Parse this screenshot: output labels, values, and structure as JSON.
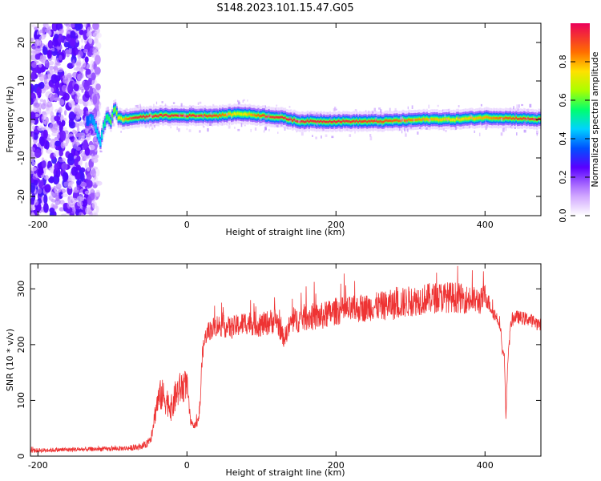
{
  "title": "S148.2023.101.15.47.G05",
  "chart_data": [
    {
      "type": "heatmap",
      "xlabel": "Height of straight line (km)",
      "ylabel": "Frequency (Hz)",
      "xlim": [
        -210,
        475
      ],
      "ylim": [
        -25,
        25
      ],
      "x_ticks": [
        -200,
        0,
        200,
        400
      ],
      "y_ticks": [
        -20,
        -10,
        0,
        10,
        20
      ],
      "colorbar": {
        "label": "Normalized spectral amplitude",
        "range": [
          0,
          1
        ],
        "ticks": [
          "0.0",
          "0.2",
          "0.4",
          "0.6",
          "0.8"
        ],
        "tick_values": [
          0,
          0.2,
          0.4,
          0.6,
          0.8
        ]
      },
      "noise_region": {
        "x": [
          -210,
          -118
        ],
        "amplitude": 0.15
      },
      "ridge": {
        "x": [
          -135,
          -128,
          -122,
          -117,
          -113,
          -108,
          -103,
          -98,
          -93,
          -85,
          -70,
          -40,
          0,
          40,
          70,
          100,
          125,
          150,
          200,
          260,
          320,
          360,
          400,
          440,
          475
        ],
        "frequency": [
          -0.5,
          0.5,
          -3,
          -6,
          -2,
          1,
          -0.5,
          3,
          0.5,
          0,
          0.5,
          1,
          1,
          1,
          1.5,
          1,
          0.5,
          -0.5,
          -0.5,
          -0.5,
          0,
          0,
          0.5,
          0.3,
          0
        ],
        "amplitude": [
          0.35,
          0.4,
          0.45,
          0.45,
          0.5,
          0.55,
          0.6,
          0.6,
          0.7,
          0.8,
          0.95,
          0.95,
          0.95,
          0.9,
          0.7,
          0.9,
          0.95,
          0.95,
          0.95,
          0.9,
          0.8,
          0.75,
          0.8,
          0.9,
          0.95
        ]
      }
    },
    {
      "type": "line",
      "xlabel": "Height of straight line (km)",
      "ylabel": "SNR (10 * v/v)",
      "xlim": [
        -210,
        475
      ],
      "ylim": [
        0,
        345
      ],
      "x_ticks": [
        -200,
        0,
        200,
        400
      ],
      "y_ticks": [
        0,
        100,
        200,
        300
      ],
      "color": "#ee3333",
      "series": [
        {
          "x": [
            -210,
            -150,
            -100,
            -70,
            -55,
            -48,
            -45,
            -40,
            -35,
            -30,
            -25,
            -20,
            -15,
            -10,
            -5,
            0,
            2,
            5,
            8,
            10,
            15,
            18,
            20,
            22,
            25,
            30,
            40,
            60,
            80,
            100,
            120,
            130,
            140,
            160,
            180,
            200,
            220,
            250,
            280,
            300,
            320,
            340,
            360,
            380,
            395,
            400,
            410,
            415,
            420,
            423,
            426,
            428,
            431,
            435,
            440,
            460,
            475
          ],
          "mean": [
            10,
            12,
            13,
            15,
            20,
            35,
            60,
            95,
            110,
            105,
            95,
            85,
            110,
            120,
            125,
            130,
            100,
            60,
            55,
            55,
            60,
            100,
            170,
            195,
            215,
            225,
            235,
            230,
            240,
            235,
            245,
            210,
            240,
            250,
            250,
            260,
            262,
            268,
            272,
            278,
            282,
            285,
            285,
            280,
            278,
            290,
            260,
            250,
            240,
            190,
            180,
            70,
            180,
            240,
            250,
            245,
            235
          ],
          "noise": [
            4,
            4,
            4,
            5,
            6,
            10,
            15,
            25,
            30,
            30,
            25,
            25,
            30,
            30,
            30,
            25,
            15,
            8,
            5,
            5,
            10,
            15,
            15,
            15,
            15,
            18,
            20,
            20,
            22,
            22,
            24,
            15,
            22,
            25,
            25,
            25,
            25,
            25,
            28,
            28,
            28,
            28,
            28,
            25,
            25,
            20,
            12,
            12,
            12,
            8,
            5,
            5,
            8,
            12,
            12,
            12,
            12
          ]
        }
      ]
    }
  ]
}
